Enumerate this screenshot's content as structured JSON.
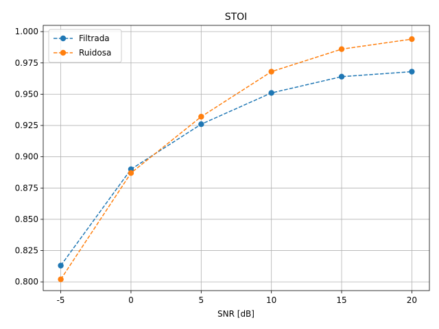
{
  "chart_data": {
    "type": "line",
    "title": "STOI",
    "xlabel": "SNR [dB]",
    "ylabel": "",
    "x": [
      -5,
      0,
      5,
      10,
      15,
      20
    ],
    "x_tick_labels": [
      "-5",
      "0",
      "5",
      "10",
      "15",
      "20"
    ],
    "xlim": [
      -6.25,
      21.25
    ],
    "ylim": [
      0.793,
      1.005
    ],
    "y_ticks": [
      0.8,
      0.825,
      0.85,
      0.875,
      0.9,
      0.925,
      0.95,
      0.975,
      1.0
    ],
    "y_tick_labels": [
      "0.800",
      "0.825",
      "0.850",
      "0.875",
      "0.900",
      "0.925",
      "0.950",
      "0.975",
      "1.000"
    ],
    "grid": true,
    "legend_position": "top-left",
    "series": [
      {
        "name": "Filtrada",
        "color": "#1f77b4",
        "line_style": "dashed",
        "marker": "circle",
        "values": [
          0.813,
          0.89,
          0.926,
          0.951,
          0.964,
          0.968
        ]
      },
      {
        "name": "Ruidosa",
        "color": "#ff7f0e",
        "line_style": "dashed",
        "marker": "circle",
        "values": [
          0.802,
          0.887,
          0.932,
          0.968,
          0.986,
          0.994
        ]
      }
    ]
  }
}
